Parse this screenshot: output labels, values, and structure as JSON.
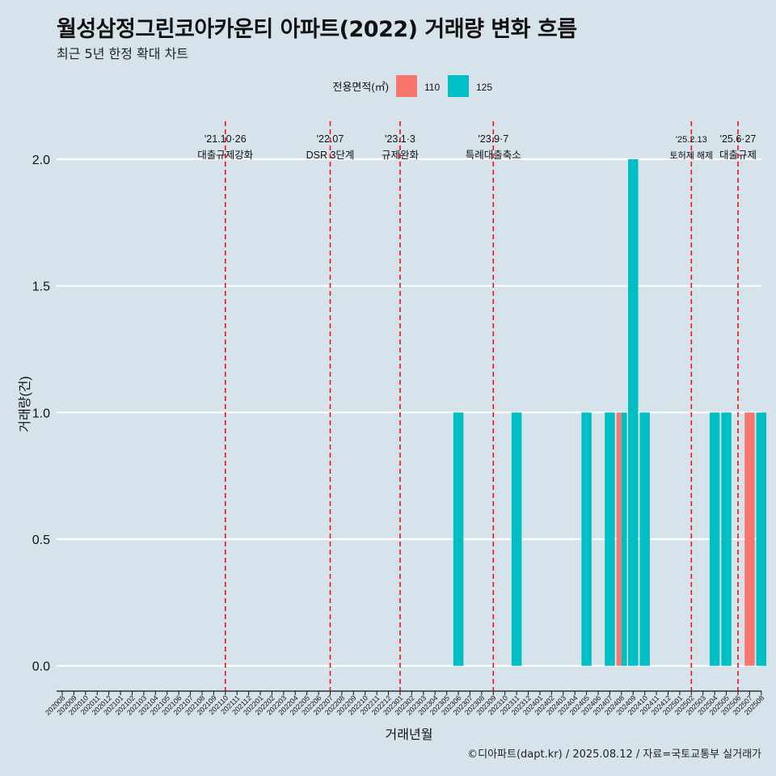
{
  "title": "월성삼정그린코아카운티 아파트(2022) 거래량 변화 흐름",
  "subtitle": "최근 5년 한정 확대 차트",
  "caption": "©디아파트(dapt.kr) / 2025.08.12 / 자료=국토교통부 실거래가",
  "chart_data": {
    "type": "bar",
    "xlabel": "거래년월",
    "ylabel": "거래량(건)",
    "ylim": [
      -0.1,
      2.15
    ],
    "yticks": [
      0.0,
      0.5,
      1.0,
      1.5,
      2.0
    ],
    "ytick_labels": [
      "0.0",
      "0.5",
      "1.0",
      "1.5",
      "2.0"
    ],
    "legend": {
      "title": "전용면적(㎡)",
      "position": "top",
      "items": [
        {
          "label": "110",
          "color": "#f8766d"
        },
        {
          "label": "125",
          "color": "#00bfc4"
        }
      ]
    },
    "categories": [
      "202008",
      "202009",
      "202010",
      "202011",
      "202012",
      "202101",
      "202102",
      "202103",
      "202104",
      "202105",
      "202106",
      "202107",
      "202108",
      "202109",
      "202110",
      "202111",
      "202112",
      "202201",
      "202202",
      "202203",
      "202204",
      "202205",
      "202206",
      "202207",
      "202208",
      "202209",
      "202210",
      "202211",
      "202212",
      "202301",
      "202302",
      "202303",
      "202304",
      "202305",
      "202306",
      "202307",
      "202308",
      "202309",
      "202310",
      "202311",
      "202312",
      "202401",
      "202402",
      "202403",
      "202404",
      "202405",
      "202406",
      "202407",
      "202408",
      "202409",
      "202410",
      "202411",
      "202412",
      "202501",
      "202502",
      "202503",
      "202504",
      "202505",
      "202506",
      "202507",
      "202508"
    ],
    "series": [
      {
        "name": "110",
        "color": "#f8766d",
        "values": [
          0,
          0,
          0,
          0,
          0,
          0,
          0,
          0,
          0,
          0,
          0,
          0,
          0,
          0,
          0,
          0,
          0,
          0,
          0,
          0,
          0,
          0,
          0,
          0,
          0,
          0,
          0,
          0,
          0,
          0,
          0,
          0,
          0,
          0,
          0,
          0,
          0,
          0,
          0,
          0,
          0,
          0,
          0,
          0,
          0,
          0,
          0,
          0,
          1,
          0,
          0,
          0,
          0,
          0,
          0,
          0,
          0,
          0,
          0,
          1,
          0
        ]
      },
      {
        "name": "125",
        "color": "#00bfc4",
        "values": [
          0,
          0,
          0,
          0,
          0,
          0,
          0,
          0,
          0,
          0,
          0,
          0,
          0,
          0,
          0,
          0,
          0,
          0,
          0,
          0,
          0,
          0,
          0,
          0,
          0,
          0,
          0,
          0,
          0,
          0,
          0,
          0,
          0,
          0,
          1,
          0,
          0,
          0,
          0,
          1,
          0,
          0,
          0,
          0,
          0,
          1,
          0,
          1,
          1,
          2,
          1,
          0,
          0,
          0,
          0,
          0,
          1,
          1,
          0,
          0,
          1
        ]
      }
    ],
    "events": [
      {
        "date": "202110",
        "label1": "'21.10·26",
        "label2": "대출규제강화"
      },
      {
        "date": "202207",
        "label1": "'22.07",
        "label2": "DSR 3단계"
      },
      {
        "date": "202301",
        "label1": "'23.1·3",
        "label2": "규제완화"
      },
      {
        "date": "202309",
        "label1": "'23.9·7",
        "label2": "특례대출축소"
      },
      {
        "date": "202502",
        "label1": "'25.2.13",
        "label2": "토허제 해제"
      },
      {
        "date": "202506",
        "label1": "'25.6·27",
        "label2": "대출규제"
      }
    ]
  }
}
